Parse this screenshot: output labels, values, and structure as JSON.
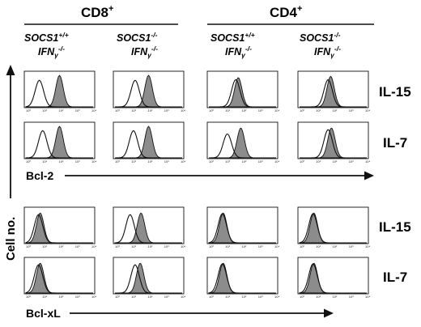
{
  "header": {
    "cd8_label": "CD8",
    "cd4_label": "CD4",
    "superscript": "+"
  },
  "genotypes": [
    {
      "socs": "SOCS1",
      "socs_sup": "+/+",
      "ifn": "IFN",
      "ifn_sub": "γ",
      "ifn_sup": "-/-"
    },
    {
      "socs": "SOCS1",
      "socs_sup": "-/-",
      "ifn": "IFN",
      "ifn_sub": "γ",
      "ifn_sup": "-/-"
    },
    {
      "socs": "SOCS1",
      "socs_sup": "+/+",
      "ifn": "IFN",
      "ifn_sub": "γ",
      "ifn_sup": "-/-"
    },
    {
      "socs": "SOCS1",
      "socs_sup": "-/-",
      "ifn": "IFN",
      "ifn_sub": "γ",
      "ifn_sup": "-/-"
    }
  ],
  "row_labels": [
    "IL-15",
    "IL-7",
    "IL-15",
    "IL-7"
  ],
  "markers": {
    "bcl2": "Bcl-2",
    "bclxl": "Bcl-xL"
  },
  "y_axis_label": "Cell no.",
  "tick_labels": [
    "10⁰",
    "10¹",
    "10²",
    "10³",
    "10⁴"
  ],
  "colors": {
    "ink": "#111111",
    "fill": "#8c8c8c",
    "open": "#ffffff"
  },
  "histograms": [
    [
      {
        "row": 0,
        "col": 0,
        "open_peak": 0.8,
        "open_h": 0.8,
        "shaded_peak": 2.0,
        "shaded_h": 0.95
      },
      {
        "row": 0,
        "col": 1,
        "open_peak": 1.2,
        "open_h": 0.8,
        "shaded_peak": 2.0,
        "shaded_h": 0.95
      },
      {
        "row": 0,
        "col": 2,
        "open_peak": 1.6,
        "open_h": 0.82,
        "shaded_peak": 1.75,
        "shaded_h": 0.88
      },
      {
        "row": 0,
        "col": 3,
        "open_peak": 1.7,
        "open_h": 0.82,
        "shaded_peak": 1.85,
        "shaded_h": 0.92
      }
    ],
    [
      {
        "row": 1,
        "col": 0,
        "open_peak": 1.0,
        "open_h": 0.82,
        "shaded_peak": 2.0,
        "shaded_h": 0.95
      },
      {
        "row": 1,
        "col": 1,
        "open_peak": 1.1,
        "open_h": 0.82,
        "shaded_peak": 2.0,
        "shaded_h": 0.95
      },
      {
        "row": 1,
        "col": 2,
        "open_peak": 1.1,
        "open_h": 0.72,
        "shaded_peak": 1.9,
        "shaded_h": 0.9
      },
      {
        "row": 1,
        "col": 3,
        "open_peak": 1.7,
        "open_h": 0.85,
        "shaded_peak": 1.9,
        "shaded_h": 0.9
      }
    ],
    [
      {
        "row": 2,
        "col": 0,
        "open_peak": 0.75,
        "open_h": 0.85,
        "shaded_peak": 0.85,
        "shaded_h": 0.9
      },
      {
        "row": 2,
        "col": 1,
        "open_peak": 0.9,
        "open_h": 0.85,
        "shaded_peak": 1.55,
        "shaded_h": 0.9
      },
      {
        "row": 2,
        "col": 2,
        "open_peak": 0.8,
        "open_h": 0.88,
        "shaded_peak": 0.85,
        "shaded_h": 0.9
      },
      {
        "row": 2,
        "col": 3,
        "open_peak": 0.8,
        "open_h": 0.88,
        "shaded_peak": 0.85,
        "shaded_h": 0.9
      }
    ],
    [
      {
        "row": 3,
        "col": 0,
        "open_peak": 0.75,
        "open_h": 0.85,
        "shaded_peak": 0.85,
        "shaded_h": 0.9
      },
      {
        "row": 3,
        "col": 1,
        "open_peak": 1.2,
        "open_h": 0.85,
        "shaded_peak": 1.5,
        "shaded_h": 0.9
      },
      {
        "row": 3,
        "col": 2,
        "open_peak": 0.8,
        "open_h": 0.88,
        "shaded_peak": 0.85,
        "shaded_h": 0.9
      },
      {
        "row": 3,
        "col": 3,
        "open_peak": 0.8,
        "open_h": 0.88,
        "shaded_peak": 0.85,
        "shaded_h": 0.9
      }
    ]
  ]
}
